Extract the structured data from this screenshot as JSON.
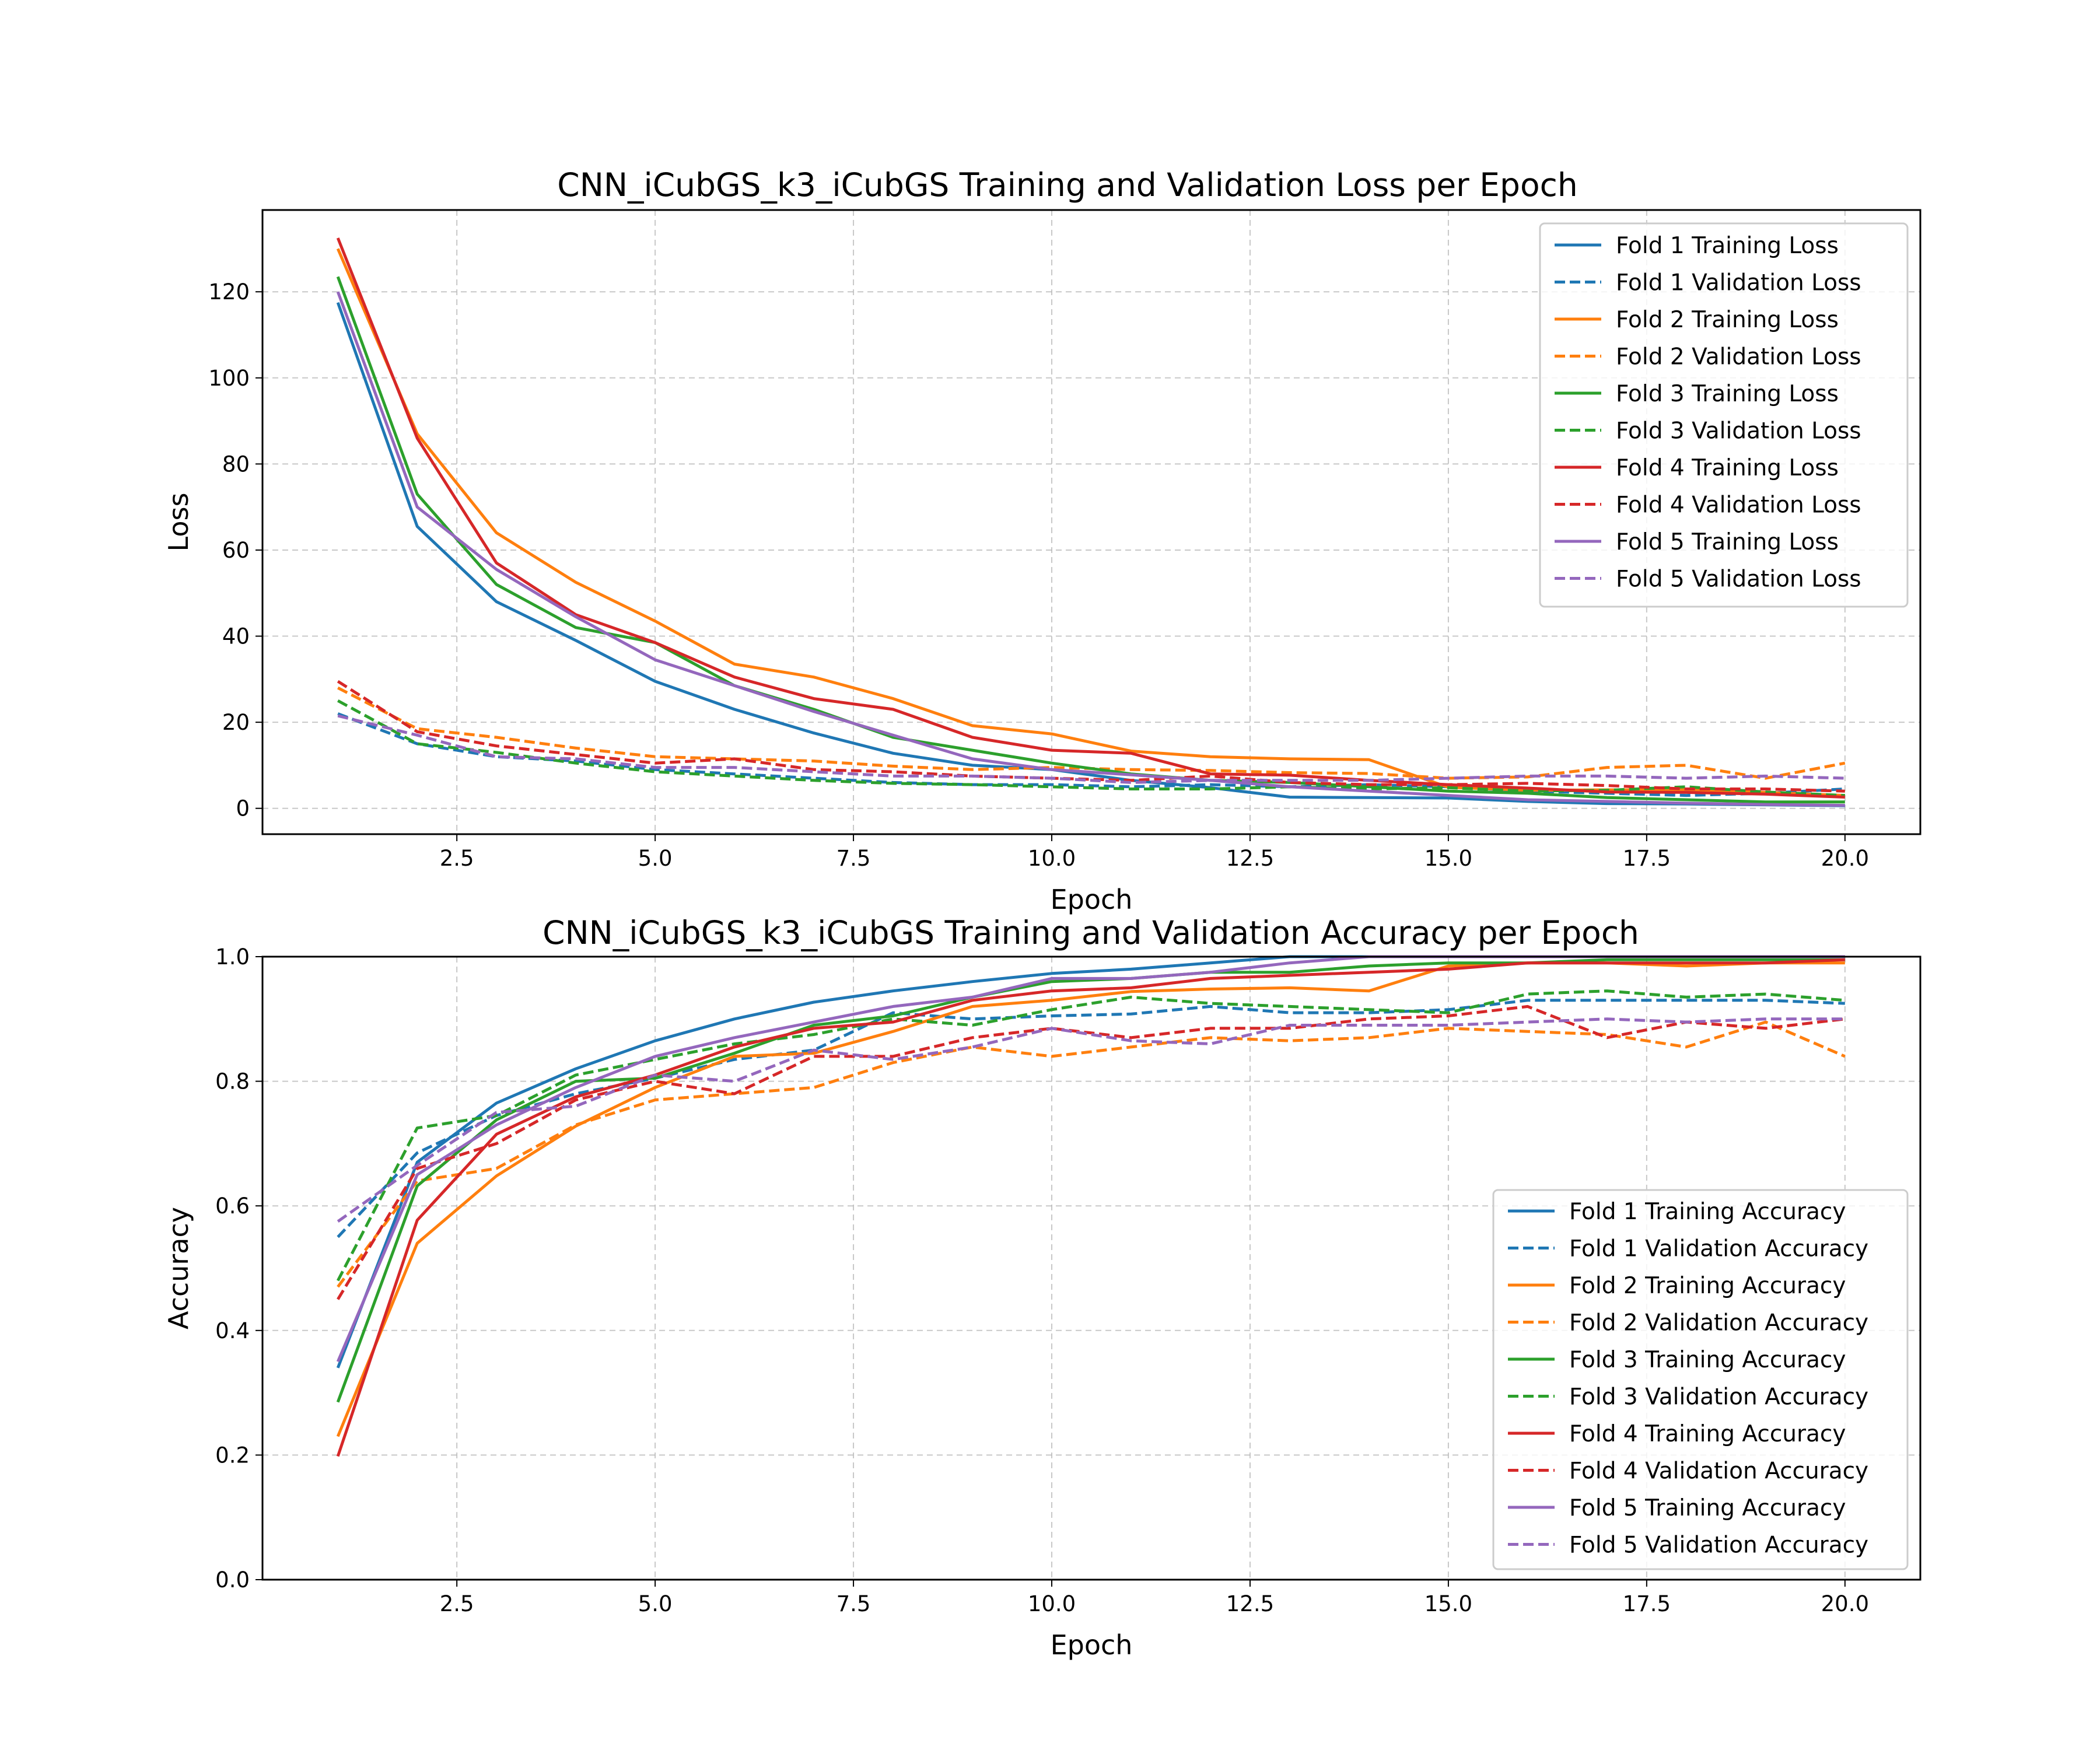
{
  "colors": {
    "Fold 1": "#1f77b4",
    "Fold 2": "#ff7f0e",
    "Fold 3": "#2ca02c",
    "Fold 4": "#d62728",
    "Fold 5": "#9467bd"
  },
  "chart_data": [
    {
      "type": "line",
      "title": "CNN_iCubGS_k3_iCubGS Training and Validation Loss per Epoch",
      "xlabel": "Epoch",
      "ylabel": "Loss",
      "xlim": [
        0.05,
        20.95
      ],
      "ylim": [
        -6.0,
        139.0
      ],
      "xticks": [
        2.5,
        5.0,
        7.5,
        10.0,
        12.5,
        15.0,
        17.5,
        20.0
      ],
      "xtick_labels": [
        "2.5",
        "5.0",
        "7.5",
        "10.0",
        "12.5",
        "15.0",
        "17.5",
        "20.0"
      ],
      "yticks": [
        0,
        20,
        40,
        60,
        80,
        100,
        120
      ],
      "ytick_labels": [
        "0",
        "20",
        "40",
        "60",
        "80",
        "100",
        "120"
      ],
      "grid": true,
      "legend_position": "upper right",
      "x": [
        1,
        2,
        3,
        4,
        5,
        6,
        7,
        8,
        9,
        10,
        11,
        12,
        13,
        14,
        15,
        16,
        17,
        18,
        19,
        20
      ],
      "series": [
        {
          "name": "Fold 1 Training Loss",
          "fold": "Fold 1",
          "style": "solid",
          "values": [
            117.5,
            65.5,
            48,
            39,
            29.5,
            23,
            17.5,
            12.8,
            10,
            9,
            6.5,
            4.8,
            2.6,
            2.5,
            2.4,
            1.6,
            1.1,
            1.0,
            0.8,
            0.6
          ]
        },
        {
          "name": "Fold 1 Validation Loss",
          "fold": "Fold 1",
          "style": "dashed",
          "values": [
            22,
            15,
            12,
            11,
            9,
            8,
            7,
            6,
            5.5,
            5.5,
            5.0,
            5.5,
            5.0,
            5.5,
            5.0,
            4.0,
            3.5,
            3.0,
            3.5,
            4.5
          ]
        },
        {
          "name": "Fold 2 Training Loss",
          "fold": "Fold 2",
          "style": "solid",
          "values": [
            130,
            87,
            64,
            52.5,
            43.5,
            33.5,
            30.5,
            25.5,
            19.2,
            17.3,
            13.3,
            12,
            11.5,
            11.3,
            4.9,
            4.2,
            4.3,
            4.3,
            3.7,
            3.0
          ]
        },
        {
          "name": "Fold 2 Validation Loss",
          "fold": "Fold 2",
          "style": "dashed",
          "values": [
            28,
            18.5,
            16.5,
            14,
            12,
            11.5,
            11,
            9.8,
            9.0,
            9.5,
            9.0,
            8.8,
            8.3,
            8.1,
            7.0,
            7.3,
            9.5,
            10.0,
            7.0,
            10.5
          ]
        },
        {
          "name": "Fold 3 Training Loss",
          "fold": "Fold 3",
          "style": "solid",
          "values": [
            123.5,
            73,
            52,
            42,
            38.5,
            28.5,
            23,
            16.5,
            13.5,
            10.5,
            8,
            6.5,
            6,
            5,
            4,
            3.5,
            2.5,
            2,
            1.5,
            1.5
          ]
        },
        {
          "name": "Fold 3 Validation Loss",
          "fold": "Fold 3",
          "style": "dashed",
          "values": [
            25,
            15,
            13,
            10.5,
            8.5,
            7.5,
            6.5,
            5.8,
            5.5,
            5,
            4.5,
            4.5,
            5.0,
            4.5,
            4.8,
            4.0,
            4.2,
            5.0,
            3.8,
            3.0
          ]
        },
        {
          "name": "Fold 4 Training Loss",
          "fold": "Fold 4",
          "style": "solid",
          "values": [
            132.5,
            86,
            57,
            45,
            38.5,
            30.5,
            25.5,
            23,
            16.5,
            13.5,
            12.8,
            8,
            7.7,
            6.5,
            5.5,
            4.7,
            3.8,
            3.7,
            3.3,
            2.6
          ]
        },
        {
          "name": "Fold 4 Validation Loss",
          "fold": "Fold 4",
          "style": "dashed",
          "values": [
            29.5,
            17.8,
            14.5,
            12.5,
            10.5,
            11.5,
            9.0,
            8.5,
            7.5,
            7.0,
            6.5,
            7.5,
            6.0,
            5.5,
            5.5,
            5.8,
            5.3,
            4.5,
            4.5,
            4.0
          ]
        },
        {
          "name": "Fold 5 Training Loss",
          "fold": "Fold 5",
          "style": "solid",
          "values": [
            120,
            70,
            55.5,
            44.5,
            34.5,
            28.5,
            22.5,
            17,
            11.5,
            9,
            7.8,
            6.5,
            5,
            4,
            3,
            2,
            1.6,
            1.2,
            0.9,
            0.7
          ]
        },
        {
          "name": "Fold 5 Validation Loss",
          "fold": "Fold 5",
          "style": "dashed",
          "values": [
            21.5,
            17,
            12,
            11.5,
            9.5,
            9.5,
            8.5,
            7.5,
            7.5,
            7.0,
            6.0,
            6.5,
            6.5,
            6.5,
            7.0,
            7.5,
            7.5,
            7.0,
            7.5,
            7.0
          ]
        }
      ]
    },
    {
      "type": "line",
      "title": "CNN_iCubGS_k3_iCubGS Training and Validation Accuracy per Epoch",
      "xlabel": "Epoch",
      "ylabel": "Accuracy",
      "xlim": [
        0.05,
        20.95
      ],
      "ylim": [
        0.0,
        1.0
      ],
      "xticks": [
        2.5,
        5.0,
        7.5,
        10.0,
        12.5,
        15.0,
        17.5,
        20.0
      ],
      "xtick_labels": [
        "2.5",
        "5.0",
        "7.5",
        "10.0",
        "12.5",
        "15.0",
        "17.5",
        "20.0"
      ],
      "yticks": [
        0.0,
        0.2,
        0.4,
        0.6,
        0.8,
        1.0
      ],
      "ytick_labels": [
        "0.0",
        "0.2",
        "0.4",
        "0.6",
        "0.8",
        "1.0"
      ],
      "grid": true,
      "legend_position": "lower right",
      "x": [
        1,
        2,
        3,
        4,
        5,
        6,
        7,
        8,
        9,
        10,
        11,
        12,
        13,
        14,
        15,
        16,
        17,
        18,
        19,
        20
      ],
      "series": [
        {
          "name": "Fold 1 Training Accuracy",
          "fold": "Fold 1",
          "style": "solid",
          "values": [
            0.34,
            0.67,
            0.765,
            0.82,
            0.865,
            0.9,
            0.927,
            0.945,
            0.96,
            0.973,
            0.98,
            0.99,
            1.0,
            1.0,
            1.0,
            1.0,
            1.0,
            1.0,
            1.0,
            1.0
          ]
        },
        {
          "name": "Fold 1 Validation Accuracy",
          "fold": "Fold 1",
          "style": "dashed",
          "values": [
            0.55,
            0.685,
            0.745,
            0.78,
            0.805,
            0.835,
            0.85,
            0.91,
            0.9,
            0.905,
            0.908,
            0.92,
            0.91,
            0.91,
            0.915,
            0.93,
            0.93,
            0.93,
            0.93,
            0.925
          ]
        },
        {
          "name": "Fold 2 Training Accuracy",
          "fold": "Fold 2",
          "style": "solid",
          "values": [
            0.23,
            0.54,
            0.648,
            0.728,
            0.79,
            0.84,
            0.845,
            0.88,
            0.92,
            0.93,
            0.944,
            0.948,
            0.95,
            0.945,
            0.985,
            0.99,
            0.99,
            0.985,
            0.99,
            0.99
          ]
        },
        {
          "name": "Fold 2 Validation Accuracy",
          "fold": "Fold 2",
          "style": "dashed",
          "values": [
            0.47,
            0.64,
            0.66,
            0.73,
            0.77,
            0.78,
            0.79,
            0.83,
            0.855,
            0.84,
            0.855,
            0.87,
            0.865,
            0.87,
            0.885,
            0.88,
            0.875,
            0.855,
            0.895,
            0.84
          ]
        },
        {
          "name": "Fold 3 Training Accuracy",
          "fold": "Fold 3",
          "style": "solid",
          "values": [
            0.285,
            0.632,
            0.738,
            0.8,
            0.805,
            0.845,
            0.89,
            0.905,
            0.935,
            0.96,
            0.965,
            0.975,
            0.975,
            0.985,
            0.99,
            0.99,
            0.995,
            0.995,
            0.995,
            0.995
          ]
        },
        {
          "name": "Fold 3 Validation Accuracy",
          "fold": "Fold 3",
          "style": "dashed",
          "values": [
            0.48,
            0.725,
            0.745,
            0.81,
            0.835,
            0.86,
            0.875,
            0.9,
            0.89,
            0.915,
            0.935,
            0.925,
            0.92,
            0.915,
            0.91,
            0.94,
            0.945,
            0.935,
            0.94,
            0.93
          ]
        },
        {
          "name": "Fold 4 Training Accuracy",
          "fold": "Fold 4",
          "style": "solid",
          "values": [
            0.198,
            0.577,
            0.715,
            0.775,
            0.81,
            0.855,
            0.885,
            0.895,
            0.93,
            0.945,
            0.95,
            0.965,
            0.97,
            0.975,
            0.98,
            0.99,
            0.99,
            0.99,
            0.99,
            0.995
          ]
        },
        {
          "name": "Fold 4 Validation Accuracy",
          "fold": "Fold 4",
          "style": "dashed",
          "values": [
            0.45,
            0.66,
            0.7,
            0.77,
            0.8,
            0.78,
            0.84,
            0.84,
            0.87,
            0.885,
            0.87,
            0.885,
            0.885,
            0.9,
            0.905,
            0.92,
            0.87,
            0.895,
            0.885,
            0.9
          ]
        },
        {
          "name": "Fold 5 Training Accuracy",
          "fold": "Fold 5",
          "style": "solid",
          "values": [
            0.35,
            0.65,
            0.73,
            0.79,
            0.84,
            0.87,
            0.895,
            0.92,
            0.935,
            0.965,
            0.965,
            0.975,
            0.99,
            1.0,
            1.0,
            1.0,
            1.0,
            1.0,
            1.0,
            1.0
          ]
        },
        {
          "name": "Fold 5 Validation Accuracy",
          "fold": "Fold 5",
          "style": "dashed",
          "values": [
            0.575,
            0.665,
            0.75,
            0.76,
            0.81,
            0.8,
            0.85,
            0.835,
            0.855,
            0.885,
            0.865,
            0.86,
            0.89,
            0.89,
            0.89,
            0.895,
            0.9,
            0.895,
            0.9,
            0.9
          ]
        }
      ]
    }
  ]
}
